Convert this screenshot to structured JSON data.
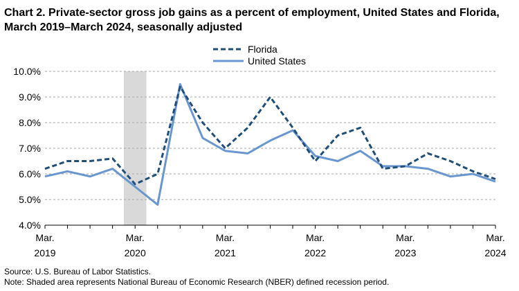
{
  "title": "Chart 2. Private-sector gross job gains as a percent of employment, United States and Florida, March 2019–March 2024, seasonally adjusted",
  "source": "Source: U.S. Bureau of Labor Statistics.",
  "note": "Note: Shaded area represents National Bureau of Economic Research (NBER) defined recession period.",
  "chart_data": {
    "type": "line",
    "x": [
      "Mar 2019",
      "Jun 2019",
      "Sep 2019",
      "Dec 2019",
      "Mar 2020",
      "Jun 2020",
      "Sep 2020",
      "Dec 2020",
      "Mar 2021",
      "Jun 2021",
      "Sep 2021",
      "Dec 2021",
      "Mar 2022",
      "Jun 2022",
      "Sep 2022",
      "Dec 2022",
      "Mar 2023",
      "Jun 2023",
      "Sep 2023",
      "Dec 2023",
      "Mar 2024"
    ],
    "series": [
      {
        "name": "Florida",
        "style": "dashed",
        "color": "#1f4e79",
        "values": [
          6.2,
          6.5,
          6.5,
          6.6,
          5.6,
          6.0,
          9.4,
          8.0,
          7.0,
          7.8,
          9.0,
          7.8,
          6.5,
          7.5,
          7.8,
          6.2,
          6.3,
          6.8,
          6.5,
          6.1,
          5.8
        ]
      },
      {
        "name": "United States",
        "style": "solid",
        "color": "#6a96cf",
        "values": [
          5.9,
          6.1,
          5.9,
          6.2,
          5.5,
          4.8,
          9.5,
          7.4,
          6.9,
          6.8,
          7.3,
          7.7,
          6.7,
          6.5,
          6.9,
          6.3,
          6.3,
          6.2,
          5.9,
          6.0,
          5.7
        ]
      }
    ],
    "ylim": [
      4.0,
      10.0
    ],
    "y_ticks": [
      "4.0%",
      "5.0%",
      "6.0%",
      "7.0%",
      "8.0%",
      "9.0%",
      "10.0%"
    ],
    "x_tick_labels": [
      {
        "index": 0,
        "month": "Mar.",
        "year": "2019"
      },
      {
        "index": 4,
        "month": "Mar.",
        "year": "2020"
      },
      {
        "index": 8,
        "month": "Mar.",
        "year": "2021"
      },
      {
        "index": 12,
        "month": "Mar.",
        "year": "2022"
      },
      {
        "index": 16,
        "month": "Mar.",
        "year": "2023"
      },
      {
        "index": 20,
        "month": "Mar.",
        "year": "2024"
      }
    ],
    "recession": {
      "start_index": 3.5,
      "end_index": 4.5,
      "color": "#d9d9d9"
    },
    "grid": true,
    "legend_position": "top-center"
  }
}
